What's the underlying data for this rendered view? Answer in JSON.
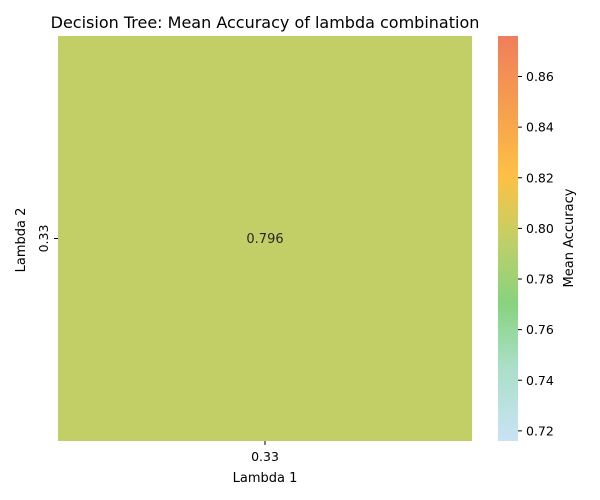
{
  "chart_data": {
    "type": "heatmap",
    "title": "Decision Tree: Mean Accuracy of lambda combination",
    "xlabel": "Lambda 1",
    "ylabel": "Lambda 2",
    "x_categories": [
      "0.33"
    ],
    "y_categories": [
      "0.33"
    ],
    "values": [
      [
        0.796
      ]
    ],
    "cell_labels": [
      [
        "0.796"
      ]
    ],
    "colorbar": {
      "label": "Mean Accuracy",
      "range": [
        0.716,
        0.876
      ],
      "ticks": [
        0.72,
        0.74,
        0.76,
        0.78,
        0.8,
        0.82,
        0.84,
        0.86
      ],
      "tick_labels": [
        "0.72",
        "0.74",
        "0.76",
        "0.78",
        "0.80",
        "0.82",
        "0.84",
        "0.86"
      ],
      "colormap": [
        {
          "v": 0.716,
          "c": "#c9e3f6"
        },
        {
          "v": 0.746,
          "c": "#a9dfc6"
        },
        {
          "v": 0.77,
          "c": "#87d37e"
        },
        {
          "v": 0.796,
          "c": "#c2cf66"
        },
        {
          "v": 0.82,
          "c": "#fdc144"
        },
        {
          "v": 0.845,
          "c": "#f6a24d"
        },
        {
          "v": 0.876,
          "c": "#f07e5c"
        }
      ]
    }
  }
}
